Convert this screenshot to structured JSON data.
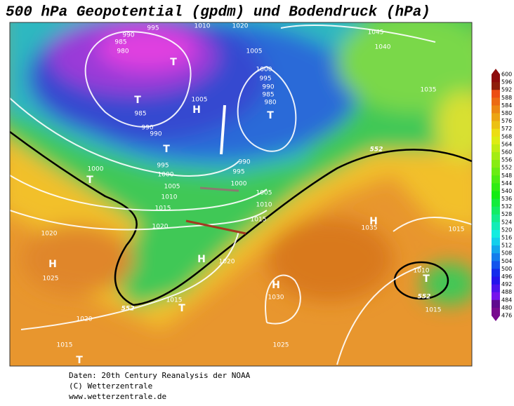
{
  "title": "500 hPa Geopotential (gpdm) und Bodendruck (hPa)",
  "legend": {
    "labels": [
      600,
      596,
      592,
      588,
      584,
      580,
      576,
      572,
      568,
      564,
      560,
      556,
      552,
      548,
      544,
      540,
      536,
      532,
      528,
      524,
      520,
      516,
      512,
      508,
      504,
      500,
      496,
      492,
      488,
      484,
      480,
      476
    ]
  },
  "pressure_labels": [
    "995",
    "1010",
    "1020",
    "990",
    "985",
    "980",
    "1045",
    "1040",
    "1005",
    "1000",
    "995",
    "990",
    "985",
    "980",
    "1035",
    "1005",
    "985",
    "990",
    "990",
    "995",
    "990",
    "995",
    "1000",
    "1000",
    "1005",
    "1000",
    "1010",
    "1005",
    "1015",
    "1010",
    "1015",
    "1020",
    "1035",
    "1015",
    "1020",
    "1025",
    "1020",
    "1010",
    "1030",
    "1015",
    "1015",
    "1020",
    "1015",
    "1025"
  ],
  "contour_labels": [
    "552",
    "552",
    "552"
  ],
  "centers": [
    "T",
    "T",
    "H",
    "T",
    "T",
    "T",
    "H",
    "H",
    "H",
    "H",
    "T",
    "T",
    "T"
  ],
  "footer": [
    "Daten: 20th Century Reanalysis der NOAA",
    "(C) Wetterzentrale",
    "www.wetterzentrale.de"
  ]
}
